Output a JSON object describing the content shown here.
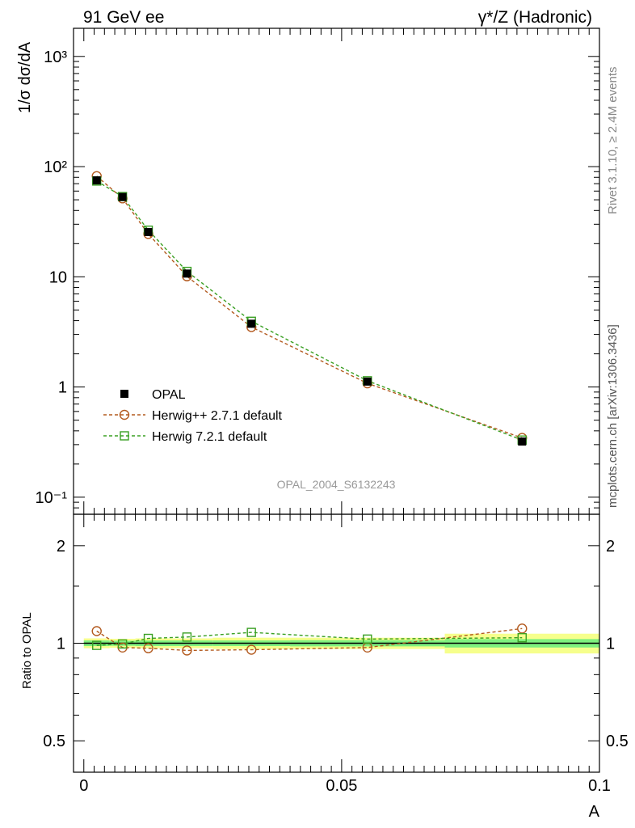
{
  "header": {
    "left_title": "91 GeV ee",
    "right_title": "γ*/Z (Hadronic)"
  },
  "side_labels": {
    "rivet": "Rivet 3.1.10, ≥ 2.4M events",
    "mcplots": "mcplots.cern.ch [arXiv:1306.3436]"
  },
  "watermark": "OPAL_2004_S6132243",
  "legend": [
    {
      "label": "OPAL",
      "style": "data"
    },
    {
      "label": "Herwig++ 2.7.1 default",
      "style": "herwigpp"
    },
    {
      "label": "Herwig 7.2.1 default",
      "style": "herwig7"
    }
  ],
  "colors": {
    "data": "#000000",
    "herwigpp": "#b35a1f",
    "herwig7": "#3aa023",
    "band_inner": "#7ef07e",
    "band_outer": "#f6ff8c"
  },
  "chart_data": [
    {
      "panel": "main",
      "type": "line",
      "ylabel": "1/σ dσ/dA",
      "yscale": "log",
      "ylim": [
        0.07,
        1800
      ],
      "xlim": [
        -0.002,
        0.1
      ],
      "y_ticks": [
        "10⁻¹",
        "1",
        "10",
        "10²",
        "10³"
      ],
      "x": [
        0.0025,
        0.0075,
        0.0125,
        0.02,
        0.0325,
        0.055,
        0.085
      ],
      "series": [
        {
          "name": "OPAL",
          "values": [
            75,
            53,
            25.5,
            10.7,
            3.75,
            1.12,
            0.32
          ]
        },
        {
          "name": "Herwig++ 2.7.1 default",
          "values": [
            82,
            51.5,
            24.5,
            10.1,
            3.5,
            1.08,
            0.345
          ]
        },
        {
          "name": "Herwig 7.2.1 default",
          "values": [
            74,
            53.5,
            26.5,
            11.2,
            3.95,
            1.14,
            0.33
          ]
        }
      ],
      "grid": false,
      "legend_position": "left"
    },
    {
      "panel": "ratio",
      "type": "line",
      "ylabel": "Ratio to OPAL",
      "xlabel": "A",
      "yscale": "log",
      "ylim": [
        0.4,
        2.5
      ],
      "xlim": [
        -0.002,
        0.1
      ],
      "y_ticks": [
        "0.5",
        "1",
        "2"
      ],
      "x_ticks": [
        "0",
        "0.05",
        "0.1"
      ],
      "x": [
        0.0025,
        0.0075,
        0.0125,
        0.02,
        0.0325,
        0.055,
        0.085
      ],
      "bin_edges": [
        0,
        0.005,
        0.01,
        0.015,
        0.025,
        0.04,
        0.07,
        0.1
      ],
      "band_inner_halfwidth": [
        0.02,
        0.018,
        0.02,
        0.02,
        0.02,
        0.022,
        0.03
      ],
      "band_outer_halfwidth": [
        0.035,
        0.032,
        0.035,
        0.035,
        0.04,
        0.04,
        0.07
      ],
      "series": [
        {
          "name": "Herwig++ 2.7.1 default",
          "values": [
            1.09,
            0.97,
            0.965,
            0.95,
            0.955,
            0.97,
            1.11
          ]
        },
        {
          "name": "Herwig 7.2.1 default",
          "values": [
            0.985,
            0.995,
            1.035,
            1.045,
            1.08,
            1.03,
            1.04
          ]
        }
      ]
    }
  ]
}
